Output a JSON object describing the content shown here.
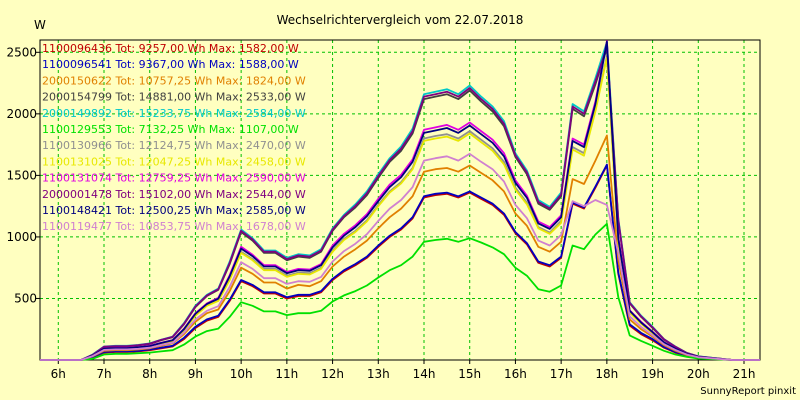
{
  "chart_data": {
    "type": "line",
    "title": "Wechselrichtervergleich vom 22.07.2018",
    "ylabel": "W",
    "xlabel": "",
    "footer": "SunnyReport pinxit",
    "ylim": [
      0,
      2600
    ],
    "xlim": [
      5.6,
      21.35
    ],
    "x_ticks": [
      6,
      7,
      8,
      9,
      10,
      11,
      12,
      13,
      14,
      15,
      16,
      17,
      18,
      19,
      20,
      21
    ],
    "x_tick_labels": [
      "6h",
      "7h",
      "8h",
      "9h",
      "10h",
      "11h",
      "12h",
      "13h",
      "14h",
      "15h",
      "16h",
      "17h",
      "18h",
      "19h",
      "20h",
      "21h"
    ],
    "y_ticks": [
      500,
      1000,
      1500,
      2000,
      2500
    ],
    "y_tick_labels": [
      "500",
      "1000",
      "1500",
      "2000",
      "2500"
    ],
    "grid": true,
    "legend_position": "top-left",
    "x": [
      5.6,
      6.25,
      6.5,
      6.75,
      7.0,
      7.25,
      7.5,
      7.75,
      8.0,
      8.25,
      8.5,
      8.75,
      9.0,
      9.25,
      9.5,
      9.75,
      10.0,
      10.25,
      10.5,
      10.75,
      11.0,
      11.25,
      11.5,
      11.75,
      12.0,
      12.25,
      12.5,
      12.75,
      13.0,
      13.25,
      13.5,
      13.75,
      14.0,
      14.25,
      14.5,
      14.75,
      15.0,
      15.25,
      15.5,
      15.75,
      16.0,
      16.25,
      16.5,
      16.75,
      17.0,
      17.25,
      17.5,
      17.75,
      18.0,
      18.25,
      18.5,
      18.75,
      19.0,
      19.25,
      19.5,
      19.75,
      20.0,
      20.25,
      20.5,
      20.75,
      21.0,
      21.35
    ],
    "series": [
      {
        "id": "1100096436",
        "label": "1100096436 Tot: 9257,00 Wh Max: 1582,00 W",
        "color": "#c00000",
        "values": [
          0,
          0,
          0,
          20,
          60,
          65,
          65,
          70,
          80,
          95,
          110,
          170,
          260,
          320,
          350,
          480,
          640,
          600,
          540,
          540,
          500,
          520,
          520,
          550,
          650,
          720,
          770,
          830,
          920,
          1000,
          1060,
          1150,
          1320,
          1340,
          1350,
          1320,
          1360,
          1310,
          1260,
          1180,
          1030,
          940,
          790,
          760,
          830,
          1270,
          1230,
          1400,
          1582,
          700,
          280,
          210,
          160,
          100,
          60,
          30,
          15,
          10,
          5,
          0,
          0,
          0
        ]
      },
      {
        "id": "1100096541",
        "label": "1100096541 Tot: 9367,00 Wh Max: 1588,00 W",
        "color": "#0000c0",
        "values": [
          0,
          0,
          0,
          25,
          65,
          70,
          70,
          75,
          85,
          100,
          115,
          180,
          270,
          330,
          360,
          490,
          650,
          610,
          550,
          550,
          510,
          530,
          530,
          560,
          660,
          730,
          780,
          840,
          930,
          1010,
          1070,
          1160,
          1330,
          1350,
          1360,
          1330,
          1370,
          1320,
          1270,
          1190,
          1040,
          950,
          800,
          770,
          840,
          1280,
          1240,
          1410,
          1588,
          710,
          290,
          220,
          170,
          105,
          65,
          35,
          18,
          12,
          6,
          0,
          0,
          0
        ]
      },
      {
        "id": "2000150622",
        "label": "2000150622 Tot: 10757,25 Wh Max: 1824,00 W",
        "color": "#e08000",
        "values": [
          0,
          0,
          0,
          30,
          75,
          80,
          80,
          85,
          95,
          115,
          135,
          210,
          310,
          380,
          410,
          560,
          750,
          700,
          630,
          630,
          580,
          610,
          600,
          640,
          760,
          840,
          900,
          970,
          1070,
          1160,
          1230,
          1330,
          1530,
          1550,
          1560,
          1530,
          1580,
          1520,
          1460,
          1370,
          1190,
          1090,
          920,
          880,
          960,
          1470,
          1430,
          1620,
          1824,
          810,
          330,
          250,
          190,
          120,
          75,
          40,
          20,
          14,
          7,
          0,
          0,
          0
        ]
      },
      {
        "id": "2000154799",
        "label": "2000154799 Tot: 14881,00 Wh Max: 2533,00 W",
        "color": "#404040",
        "values": [
          0,
          0,
          0,
          40,
          105,
          110,
          110,
          118,
          130,
          160,
          185,
          290,
          430,
          520,
          570,
          780,
          1040,
          970,
          870,
          870,
          810,
          840,
          830,
          880,
          1050,
          1160,
          1240,
          1340,
          1480,
          1610,
          1700,
          1840,
          2120,
          2140,
          2160,
          2120,
          2190,
          2100,
          2020,
          1900,
          1650,
          1510,
          1270,
          1220,
          1330,
          2040,
          1980,
          2240,
          2533,
          1130,
          460,
          350,
          260,
          165,
          105,
          55,
          28,
          19,
          10,
          0,
          0,
          0
        ]
      },
      {
        "id": "2000149892",
        "label": "2000149892 Tot: 15233,75 Wh Max: 2584,00 W",
        "color": "#00c8c8",
        "values": [
          0,
          0,
          0,
          45,
          110,
          115,
          115,
          123,
          135,
          165,
          190,
          300,
          440,
          530,
          580,
          800,
          1060,
          990,
          890,
          890,
          830,
          860,
          850,
          900,
          1070,
          1180,
          1265,
          1370,
          1510,
          1640,
          1735,
          1880,
          2160,
          2180,
          2200,
          2160,
          2230,
          2140,
          2060,
          1940,
          1680,
          1540,
          1300,
          1245,
          1360,
          2080,
          2020,
          2290,
          2584,
          1150,
          470,
          360,
          270,
          170,
          110,
          58,
          30,
          20,
          10,
          0,
          0,
          0
        ]
      },
      {
        "id": "1100129553",
        "label": "1100129553 Tot: 7132,25 Wh Max: 1107,00 W",
        "color": "#00e000",
        "values": [
          0,
          0,
          0,
          10,
          45,
          50,
          50,
          55,
          60,
          70,
          80,
          125,
          190,
          235,
          255,
          350,
          470,
          440,
          395,
          395,
          365,
          380,
          380,
          400,
          475,
          525,
          560,
          605,
          670,
          730,
          770,
          840,
          960,
          975,
          985,
          960,
          990,
          955,
          915,
          860,
          750,
          685,
          575,
          555,
          605,
          930,
          900,
          1020,
          1107,
          510,
          200,
          155,
          115,
          75,
          45,
          25,
          12,
          8,
          4,
          0,
          0,
          0
        ]
      },
      {
        "id": "1100130966",
        "label": "1100130966 Tot: 12124,75 Wh Max: 2470,00 W",
        "color": "#909090",
        "values": [
          0,
          0,
          0,
          35,
          90,
          95,
          95,
          100,
          110,
          135,
          155,
          245,
          365,
          445,
          485,
          660,
          880,
          820,
          740,
          740,
          685,
          710,
          705,
          750,
          890,
          985,
          1050,
          1135,
          1260,
          1370,
          1445,
          1560,
          1800,
          1820,
          1835,
          1800,
          1860,
          1790,
          1720,
          1610,
          1400,
          1280,
          1080,
          1035,
          1130,
          1730,
          1680,
          2040,
          2470,
          960,
          390,
          300,
          220,
          140,
          90,
          48,
          24,
          16,
          8,
          0,
          0,
          0
        ]
      },
      {
        "id": "1100131025",
        "label": "1100131025 Tot: 12047,25 Wh Max: 2458,00 W",
        "color": "#e8e800",
        "values": [
          0,
          0,
          0,
          35,
          88,
          93,
          93,
          98,
          108,
          132,
          152,
          240,
          360,
          440,
          480,
          650,
          870,
          810,
          730,
          730,
          675,
          700,
          695,
          740,
          880,
          975,
          1040,
          1125,
          1250,
          1360,
          1435,
          1550,
          1780,
          1800,
          1815,
          1780,
          1840,
          1770,
          1700,
          1590,
          1385,
          1265,
          1070,
          1025,
          1115,
          1710,
          1660,
          2020,
          2458,
          950,
          385,
          295,
          218,
          138,
          88,
          47,
          24,
          16,
          8,
          0,
          0,
          0
        ]
      },
      {
        "id": "1100131074",
        "label": "1100131074 Tot: 12759,25 Wh Max: 2590,00 W",
        "color": "#e000e0",
        "values": [
          0,
          0,
          0,
          37,
          93,
          98,
          98,
          104,
          115,
          140,
          162,
          255,
          380,
          460,
          505,
          690,
          920,
          855,
          770,
          770,
          715,
          740,
          735,
          780,
          930,
          1025,
          1095,
          1185,
          1310,
          1425,
          1505,
          1630,
          1870,
          1890,
          1910,
          1870,
          1930,
          1860,
          1790,
          1680,
          1460,
          1335,
          1125,
          1080,
          1175,
          1800,
          1750,
          2100,
          2590,
          1000,
          405,
          310,
          230,
          145,
          93,
          50,
          25,
          17,
          8,
          0,
          0,
          0
        ]
      },
      {
        "id": "2000001478",
        "label": "2000001478 Tot: 15102,00 Wh Max: 2544,00 W",
        "color": "#800080",
        "values": [
          0,
          0,
          0,
          42,
          108,
          113,
          113,
          121,
          133,
          163,
          188,
          295,
          435,
          525,
          575,
          790,
          1050,
          980,
          880,
          880,
          820,
          850,
          840,
          890,
          1060,
          1170,
          1252,
          1355,
          1495,
          1625,
          1718,
          1860,
          2140,
          2160,
          2180,
          2140,
          2210,
          2120,
          2040,
          1920,
          1665,
          1525,
          1285,
          1232,
          1345,
          2060,
          2000,
          2265,
          2544,
          1140,
          465,
          355,
          265,
          168,
          108,
          57,
          29,
          19,
          10,
          0,
          0,
          0
        ]
      },
      {
        "id": "1100148421",
        "label": "1100148421 Tot: 12500,25 Wh Max: 2585,00 W",
        "color": "#000080",
        "values": [
          0,
          0,
          0,
          36,
          92,
          97,
          97,
          103,
          113,
          138,
          160,
          250,
          375,
          455,
          498,
          680,
          905,
          843,
          760,
          760,
          705,
          730,
          725,
          770,
          915,
          1010,
          1080,
          1168,
          1290,
          1405,
          1485,
          1610,
          1845,
          1865,
          1885,
          1845,
          1905,
          1835,
          1765,
          1655,
          1440,
          1318,
          1110,
          1065,
          1160,
          1780,
          1730,
          2080,
          2585,
          985,
          400,
          305,
          226,
          143,
          92,
          49,
          25,
          17,
          8,
          0,
          0,
          0
        ]
      },
      {
        "id": "1100119477",
        "label": "1100119477 Tot: 10853,75 Wh Max: 1678,00 W",
        "color": "#d080d0",
        "values": [
          0,
          0,
          0,
          32,
          82,
          86,
          86,
          91,
          100,
          122,
          140,
          222,
          330,
          400,
          437,
          595,
          795,
          740,
          665,
          665,
          618,
          640,
          635,
          675,
          800,
          885,
          945,
          1022,
          1130,
          1230,
          1300,
          1405,
          1620,
          1640,
          1655,
          1620,
          1675,
          1610,
          1550,
          1450,
          1260,
          1152,
          970,
          930,
          1015,
          1290,
          1250,
          1300,
          1260,
          870,
          355,
          270,
          200,
          128,
          82,
          44,
          22,
          15,
          7,
          0,
          0,
          0
        ]
      }
    ]
  }
}
